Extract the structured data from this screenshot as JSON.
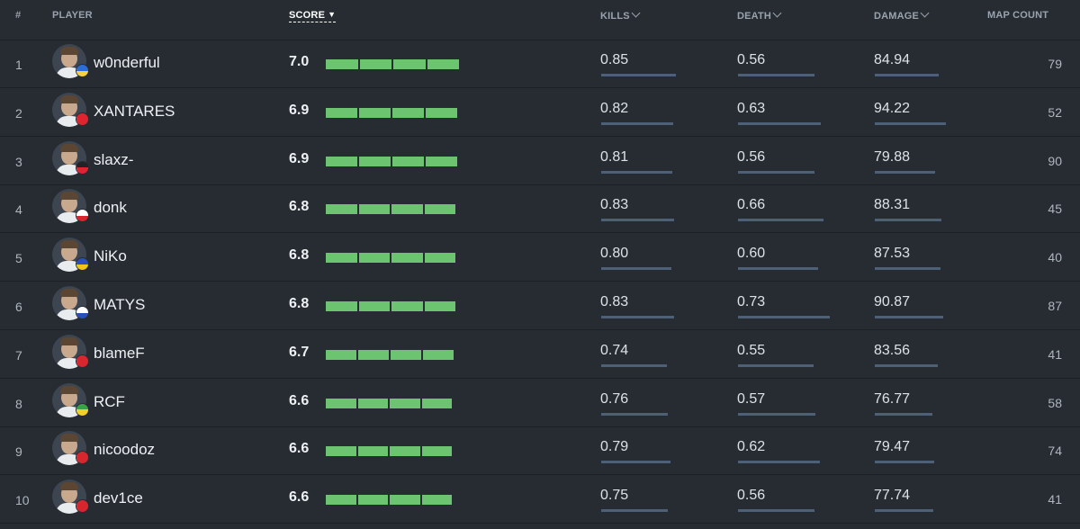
{
  "header": {
    "rank": "#",
    "player": "PLAYER",
    "score": "SCORE",
    "kills": "KILLS",
    "death": "DEATH",
    "damage": "DAMAGE",
    "map_count": "MAP COUNT"
  },
  "colors": {
    "background": "#272c33",
    "score_bar": "#6cc471",
    "stat_bar": "#4e6078"
  },
  "players": [
    {
      "rank": "1",
      "name": "w0nderful",
      "score": "7.0",
      "kills": "0.85",
      "death": "0.56",
      "damage": "84.94",
      "maps": "79",
      "flag": "ukraine-flag"
    },
    {
      "rank": "2",
      "name": "XANTARES",
      "score": "6.9",
      "kills": "0.82",
      "death": "0.63",
      "damage": "94.22",
      "maps": "52",
      "flag": "turkey-flag"
    },
    {
      "rank": "3",
      "name": "slaxz-",
      "score": "6.9",
      "kills": "0.81",
      "death": "0.56",
      "damage": "79.88",
      "maps": "90",
      "flag": "germany-flag"
    },
    {
      "rank": "4",
      "name": "donk",
      "score": "6.8",
      "kills": "0.83",
      "death": "0.66",
      "damage": "88.31",
      "maps": "45",
      "flag": "russia-flag"
    },
    {
      "rank": "5",
      "name": "NiKo",
      "score": "6.8",
      "kills": "0.80",
      "death": "0.60",
      "damage": "87.53",
      "maps": "40",
      "flag": "bosnia-flag"
    },
    {
      "rank": "6",
      "name": "MATYS",
      "score": "6.8",
      "kills": "0.83",
      "death": "0.73",
      "damage": "90.87",
      "maps": "87",
      "flag": "slovakia-flag"
    },
    {
      "rank": "7",
      "name": "blameF",
      "score": "6.7",
      "kills": "0.74",
      "death": "0.55",
      "damage": "83.56",
      "maps": "41",
      "flag": "denmark-flag"
    },
    {
      "rank": "8",
      "name": "RCF",
      "score": "6.6",
      "kills": "0.76",
      "death": "0.57",
      "damage": "76.77",
      "maps": "58",
      "flag": "brazil-flag"
    },
    {
      "rank": "9",
      "name": "nicoodoz",
      "score": "6.6",
      "kills": "0.79",
      "death": "0.62",
      "damage": "79.47",
      "maps": "74",
      "flag": "denmark-flag"
    },
    {
      "rank": "10",
      "name": "dev1ce",
      "score": "6.6",
      "kills": "0.75",
      "death": "0.56",
      "damage": "77.74",
      "maps": "41",
      "flag": "denmark-flag"
    }
  ]
}
